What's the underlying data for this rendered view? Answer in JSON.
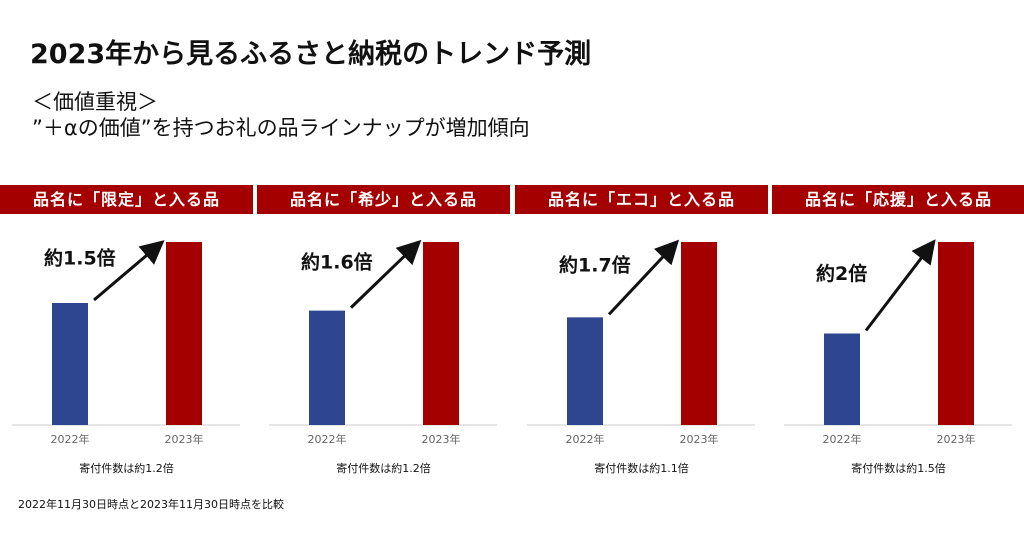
{
  "title": "2023年から見るふるさと納税のトレンド予測",
  "subtitle_line1": "＜価値重視＞",
  "subtitle_line2": "”＋αの価値”を持つお礼の品ラインナップが増加傾向",
  "footnote": "2022年11月30日時点と2023年11月30日時点を比較",
  "colors": {
    "header": "#a50000",
    "bar_2022": "#2e4590",
    "bar_2023": "#a50000"
  },
  "chart_data": [
    {
      "type": "bar",
      "title": "品名に「限定」と入る品",
      "categories": [
        "2022年",
        "2023年"
      ],
      "values": [
        1,
        1.5
      ],
      "annotation": "約1.5倍",
      "note": "寄付件数は約1.2倍"
    },
    {
      "type": "bar",
      "title": "品名に「希少」と入る品",
      "categories": [
        "2022年",
        "2023年"
      ],
      "values": [
        1,
        1.6
      ],
      "annotation": "約1.6倍",
      "note": "寄付件数は約1.2倍"
    },
    {
      "type": "bar",
      "title": "品名に「エコ」と入る品",
      "categories": [
        "2022年",
        "2023年"
      ],
      "values": [
        1,
        1.7
      ],
      "annotation": "約1.7倍",
      "note": "寄付件数は約1.1倍"
    },
    {
      "type": "bar",
      "title": "品名に「応援」と入る品",
      "categories": [
        "2022年",
        "2023年"
      ],
      "values": [
        1,
        2
      ],
      "annotation": "約2倍",
      "note": "寄付件数は約1.5倍"
    }
  ]
}
